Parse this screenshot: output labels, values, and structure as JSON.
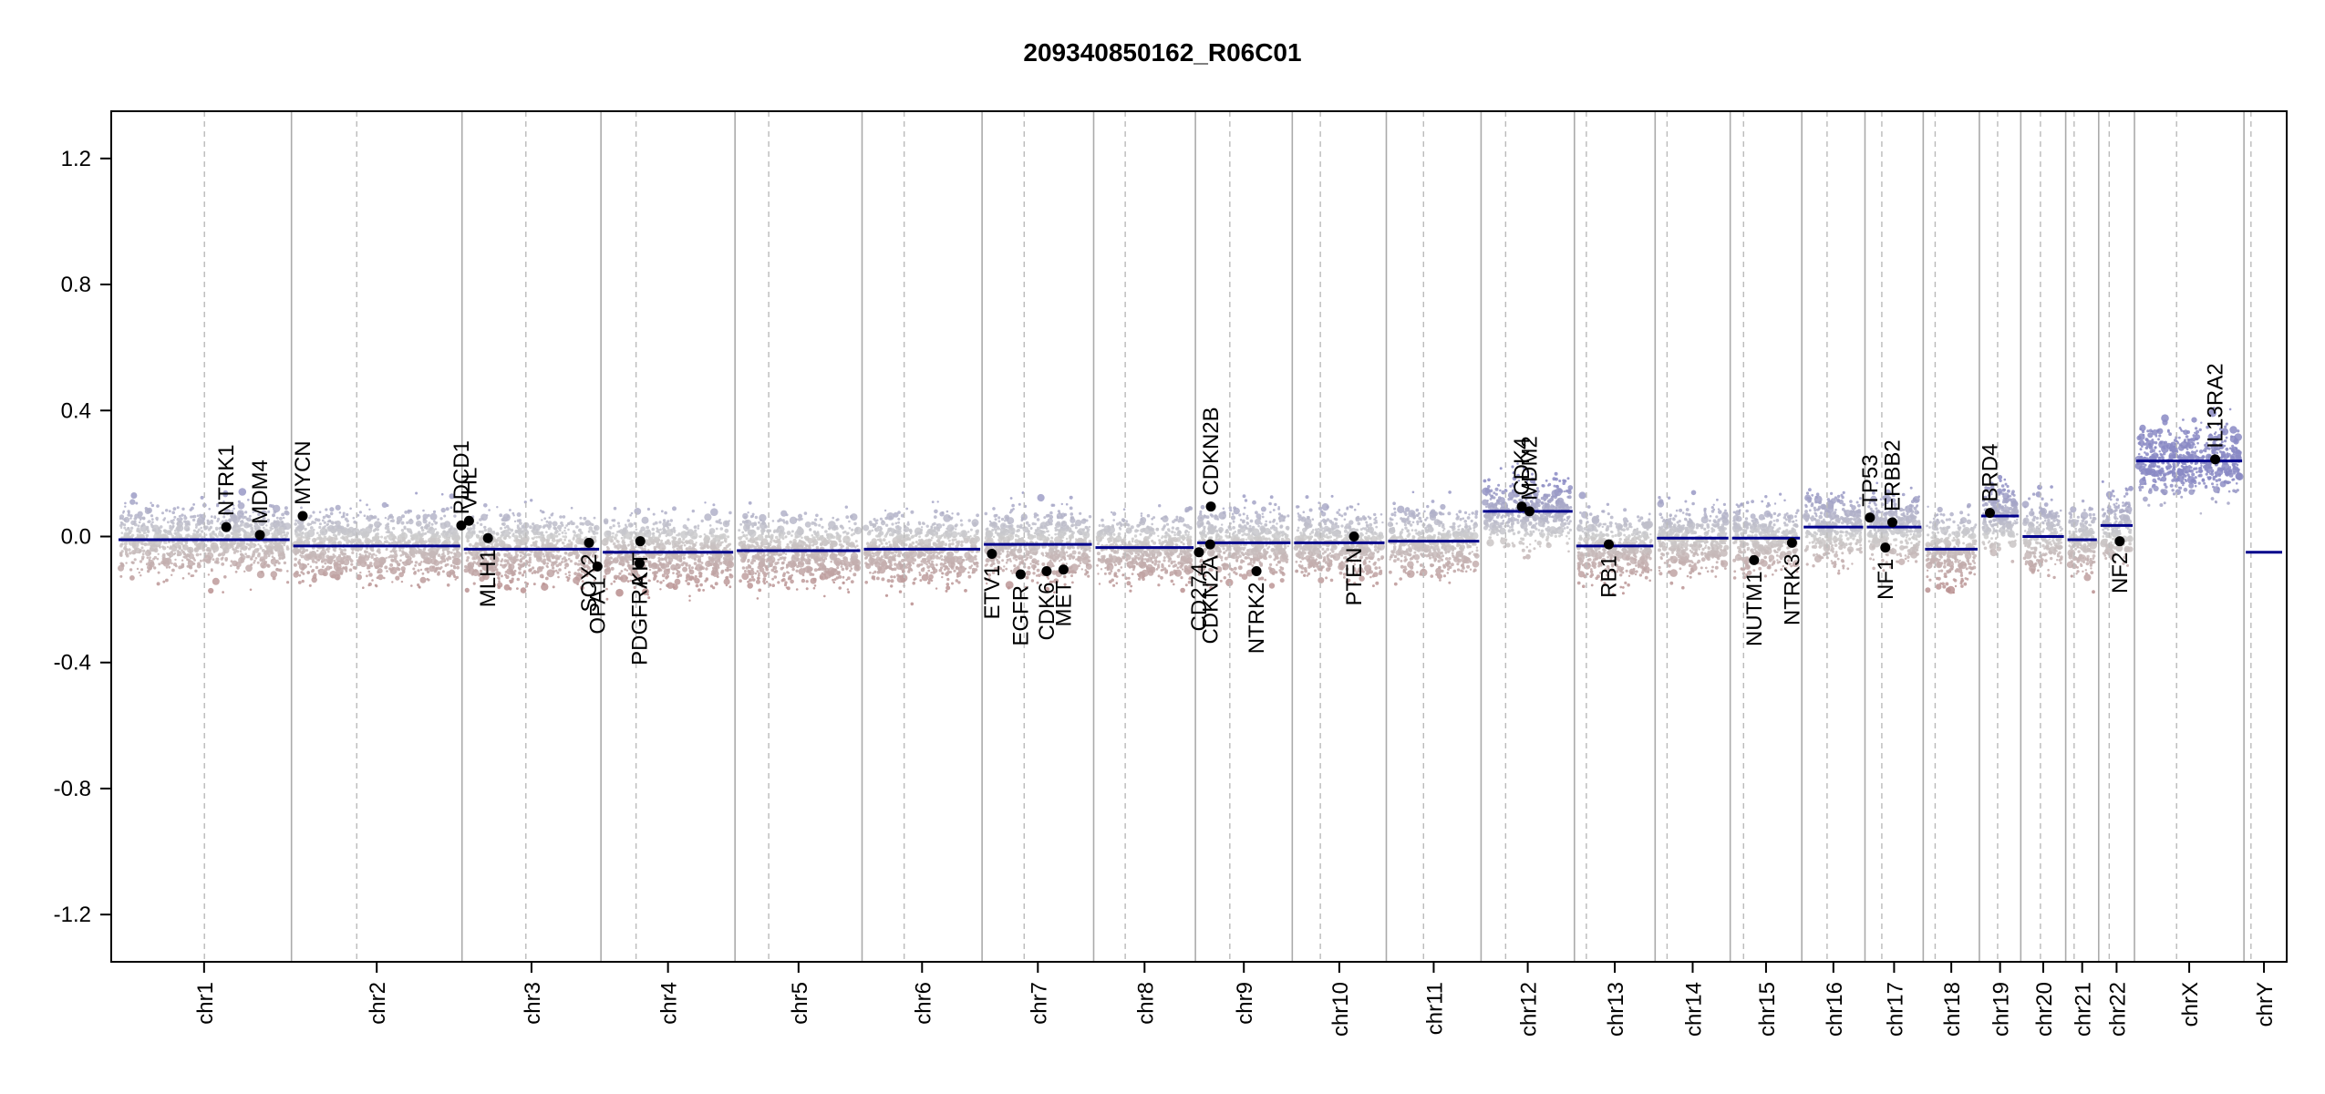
{
  "chart_data": {
    "type": "scatter",
    "title": "209340850162_R06C01",
    "xlabel": "",
    "ylabel": "",
    "ylim": [
      -1.35,
      1.35
    ],
    "yticks": [
      -1.2,
      -0.8,
      -0.4,
      0.0,
      0.4,
      0.8,
      1.2
    ],
    "ytick_labels": [
      "-1.2",
      "-0.8",
      "-0.4",
      "0.0",
      "0.4",
      "0.8",
      "1.2"
    ],
    "grid": false,
    "colors": {
      "gain": "#8a8ac4",
      "neutral": "#cccccc",
      "loss": "#b98d8d",
      "segment": "#00008b",
      "gene_point": "#000000",
      "chrom_boundary": "#aaaaaa",
      "centromere": "#bbbbbb"
    },
    "chromosomes": [
      {
        "name": "chr1",
        "length": 249,
        "centromere": 125,
        "segments": [
          -0.01
        ]
      },
      {
        "name": "chr2",
        "length": 243,
        "centromere": 93,
        "segments": [
          -0.03
        ]
      },
      {
        "name": "chr3",
        "length": 198,
        "centromere": 91,
        "segments": [
          -0.04
        ]
      },
      {
        "name": "chr4",
        "length": 191,
        "centromere": 50,
        "segments": [
          -0.05
        ]
      },
      {
        "name": "chr5",
        "length": 181,
        "centromere": 48,
        "segments": [
          -0.045
        ]
      },
      {
        "name": "chr6",
        "length": 171,
        "centromere": 60,
        "segments": [
          -0.04
        ]
      },
      {
        "name": "chr7",
        "length": 159,
        "centromere": 60,
        "segments": [
          -0.025
        ]
      },
      {
        "name": "chr8",
        "length": 145,
        "centromere": 45,
        "segments": [
          -0.035
        ]
      },
      {
        "name": "chr9",
        "length": 138,
        "centromere": 49,
        "segments": [
          -0.02
        ]
      },
      {
        "name": "chr10",
        "length": 134,
        "centromere": 40,
        "segments": [
          -0.02
        ]
      },
      {
        "name": "chr11",
        "length": 135,
        "centromere": 53,
        "segments": [
          -0.015
        ]
      },
      {
        "name": "chr12",
        "length": 133,
        "centromere": 35,
        "segments": [
          0.08
        ]
      },
      {
        "name": "chr13",
        "length": 115,
        "centromere": 17,
        "segments": [
          -0.03
        ]
      },
      {
        "name": "chr14",
        "length": 107,
        "centromere": 17,
        "segments": [
          -0.005
        ]
      },
      {
        "name": "chr15",
        "length": 102,
        "centromere": 19,
        "segments": [
          -0.005
        ]
      },
      {
        "name": "chr16",
        "length": 90,
        "centromere": 36,
        "segments": [
          0.03
        ]
      },
      {
        "name": "chr17",
        "length": 83,
        "centromere": 24,
        "segments": [
          0.03
        ]
      },
      {
        "name": "chr18",
        "length": 80,
        "centromere": 17,
        "segments": [
          -0.04
        ]
      },
      {
        "name": "chr19",
        "length": 59,
        "centromere": 26,
        "segments": [
          0.065
        ]
      },
      {
        "name": "chr20",
        "length": 64,
        "centromere": 28,
        "segments": [
          0.0
        ]
      },
      {
        "name": "chr21",
        "length": 47,
        "centromere": 12,
        "segments": [
          -0.01
        ]
      },
      {
        "name": "chr22",
        "length": 51,
        "centromere": 15,
        "segments": [
          0.035
        ]
      },
      {
        "name": "chrX",
        "length": 156,
        "centromere": 60,
        "segments": [
          0.24
        ]
      },
      {
        "name": "chrY",
        "length": 57,
        "centromere": 10,
        "segments": [
          -0.05
        ]
      }
    ],
    "genes": [
      {
        "name": "NTRK1",
        "chrom": "chr1",
        "pos": 156,
        "value": 0.03,
        "label_side": "up"
      },
      {
        "name": "MDM4",
        "chrom": "chr1",
        "pos": 204,
        "value": 0.005,
        "label_side": "up"
      },
      {
        "name": "MYCN",
        "chrom": "chr2",
        "pos": 16,
        "value": 0.065,
        "label_side": "up"
      },
      {
        "name": "PDCD1",
        "chrom": "chr2",
        "pos": 242,
        "value": 0.035,
        "label_side": "up"
      },
      {
        "name": "VHL",
        "chrom": "chr3",
        "pos": 10,
        "value": 0.05,
        "label_side": "up"
      },
      {
        "name": "MLH1",
        "chrom": "chr3",
        "pos": 37,
        "value": -0.005,
        "label_side": "down"
      },
      {
        "name": "SOX2",
        "chrom": "chr3",
        "pos": 181,
        "value": -0.02,
        "label_side": "down"
      },
      {
        "name": "OPA1",
        "chrom": "chr3",
        "pos": 193,
        "value": -0.095,
        "label_side": "down"
      },
      {
        "name": "PDGFRA",
        "chrom": "chr4",
        "pos": 55,
        "value": -0.085,
        "label_side": "down"
      },
      {
        "name": "KIT",
        "chrom": "chr4",
        "pos": 56,
        "value": -0.015,
        "label_side": "down"
      },
      {
        "name": "EGFR",
        "chrom": "chr7",
        "pos": 55,
        "value": -0.12,
        "label_side": "down"
      },
      {
        "name": "CDK6",
        "chrom": "chr7",
        "pos": 92,
        "value": -0.11,
        "label_side": "down"
      },
      {
        "name": "MET",
        "chrom": "chr7",
        "pos": 116,
        "value": -0.105,
        "label_side": "down"
      },
      {
        "name": "ETV1",
        "chrom": "chr7",
        "pos": 14,
        "value": -0.055,
        "label_side": "down"
      },
      {
        "name": "CD274",
        "chrom": "chr9",
        "pos": 5,
        "value": -0.05,
        "label_side": "down"
      },
      {
        "name": "CDKN2A",
        "chrom": "chr9",
        "pos": 21,
        "value": -0.025,
        "label_side": "down"
      },
      {
        "name": "CDKN2B",
        "chrom": "chr9",
        "pos": 22,
        "value": 0.095,
        "label_side": "up"
      },
      {
        "name": "NTRK2",
        "chrom": "chr9",
        "pos": 87,
        "value": -0.11,
        "label_side": "down"
      },
      {
        "name": "PTEN",
        "chrom": "chr10",
        "pos": 88,
        "value": 0.0,
        "label_side": "down"
      },
      {
        "name": "CDK4",
        "chrom": "chr12",
        "pos": 58,
        "value": 0.095,
        "label_side": "up"
      },
      {
        "name": "MDM2",
        "chrom": "chr12",
        "pos": 69,
        "value": 0.08,
        "label_side": "up"
      },
      {
        "name": "RB1",
        "chrom": "chr13",
        "pos": 49,
        "value": -0.025,
        "label_side": "down"
      },
      {
        "name": "NUTM1",
        "chrom": "chr15",
        "pos": 34,
        "value": -0.075,
        "label_side": "down"
      },
      {
        "name": "NTRK3",
        "chrom": "chr15",
        "pos": 88,
        "value": -0.02,
        "label_side": "down"
      },
      {
        "name": "TP53",
        "chrom": "chr17",
        "pos": 7,
        "value": 0.06,
        "label_side": "up"
      },
      {
        "name": "NF1",
        "chrom": "chr17",
        "pos": 29,
        "value": -0.035,
        "label_side": "down"
      },
      {
        "name": "ERBB2",
        "chrom": "chr17",
        "pos": 39,
        "value": 0.045,
        "label_side": "up"
      },
      {
        "name": "BRD4",
        "chrom": "chr19",
        "pos": 15,
        "value": 0.075,
        "label_side": "up"
      },
      {
        "name": "NF2",
        "chrom": "chr22",
        "pos": 30,
        "value": -0.015,
        "label_side": "down"
      },
      {
        "name": "IL13RA2",
        "chrom": "chrX",
        "pos": 115,
        "value": 0.245,
        "label_side": "up"
      }
    ]
  }
}
